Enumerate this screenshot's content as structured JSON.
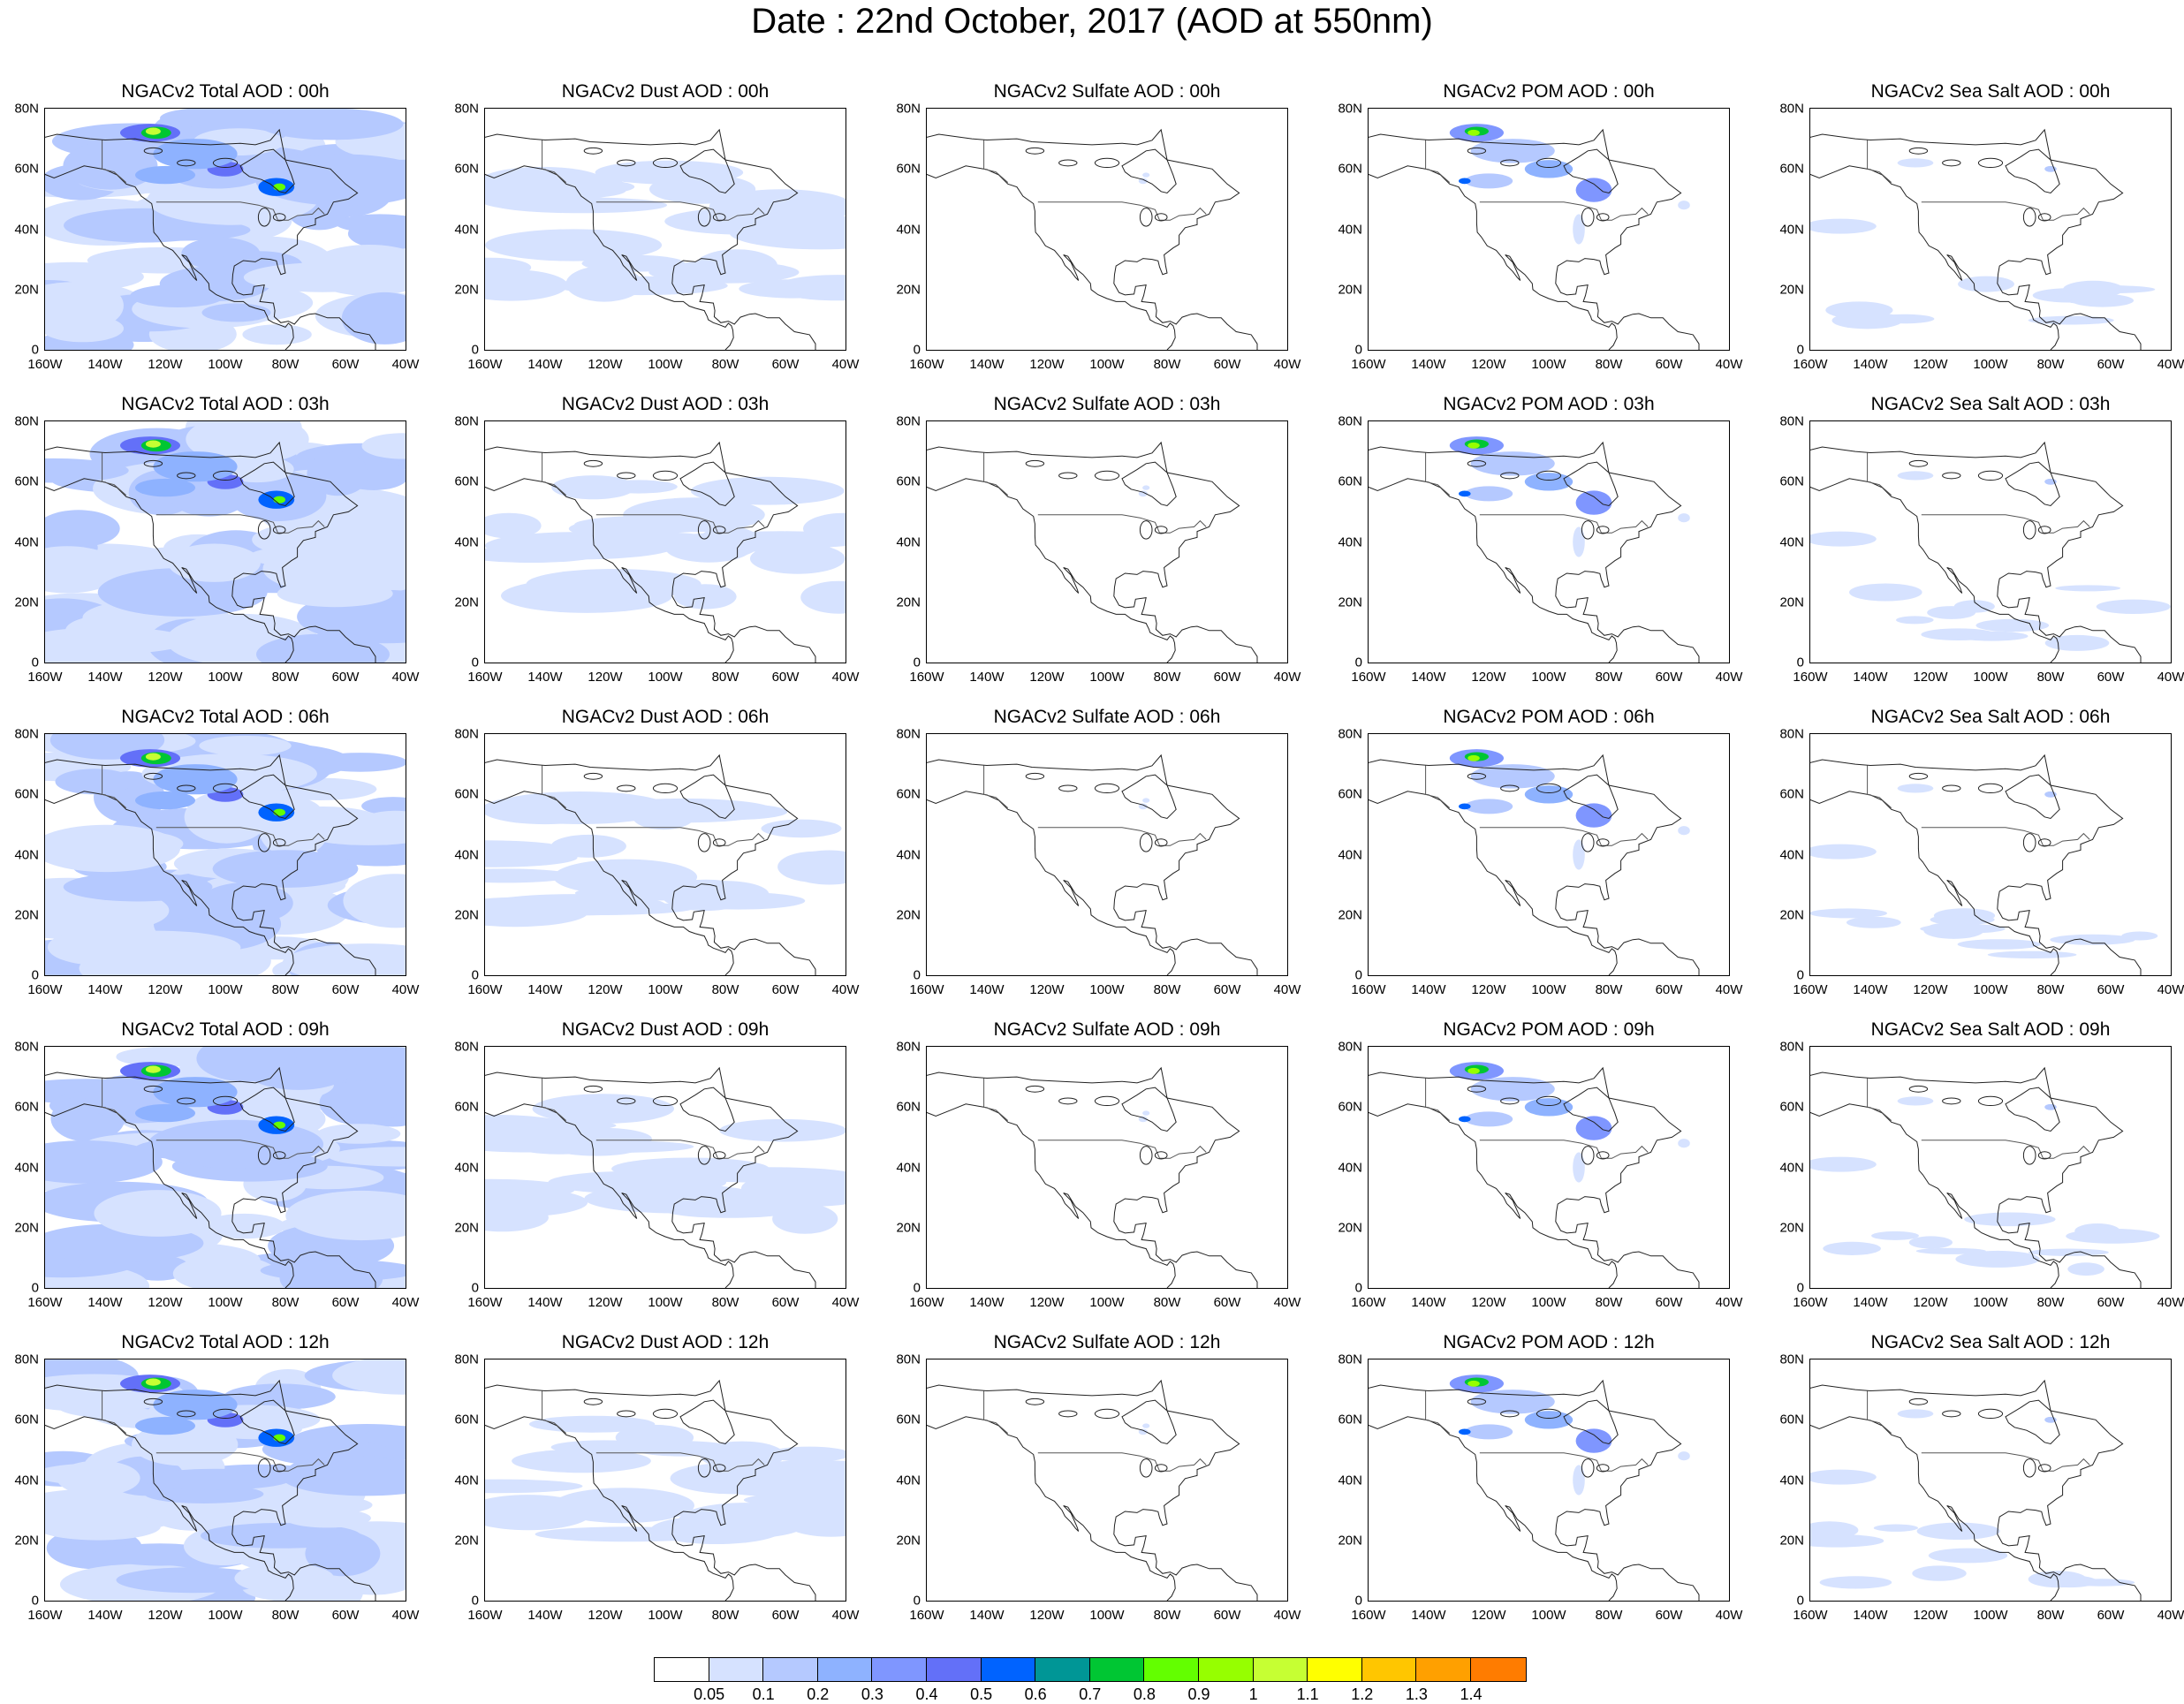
{
  "title": "Date : 22nd October, 2017 (AOD at 550nm)",
  "map_axes": {
    "lat_ticks": [
      "80N",
      "60N",
      "40N",
      "20N",
      "0"
    ],
    "lon_ticks": [
      "160W",
      "140W",
      "120W",
      "100W",
      "80W",
      "60W",
      "40W"
    ]
  },
  "panels": [
    [
      "NGACv2 Total AOD : 00h",
      "NGACv2 Dust AOD : 00h",
      "NGACv2 Sulfate AOD : 00h",
      "NGACv2 POM AOD : 00h",
      "NGACv2 Sea Salt AOD : 00h"
    ],
    [
      "NGACv2 Total AOD : 03h",
      "NGACv2 Dust AOD : 03h",
      "NGACv2 Sulfate AOD : 03h",
      "NGACv2 POM AOD : 03h",
      "NGACv2 Sea Salt AOD : 03h"
    ],
    [
      "NGACv2 Total AOD : 06h",
      "NGACv2 Dust AOD : 06h",
      "NGACv2 Sulfate AOD : 06h",
      "NGACv2 POM AOD : 06h",
      "NGACv2 Sea Salt AOD : 06h"
    ],
    [
      "NGACv2 Total AOD : 09h",
      "NGACv2 Dust AOD : 09h",
      "NGACv2 Sulfate AOD : 09h",
      "NGACv2 POM AOD : 09h",
      "NGACv2 Sea Salt  AOD : 09h"
    ],
    [
      "NGACv2 Total AOD  : 12h",
      "NGACv2 Dust AOD : 12h",
      "NGACv2 Sulfate AOD : 12h",
      "NGACv2 POM  AOD : 12h",
      "NGACv2 Sea Salt  AOD : 12h"
    ]
  ],
  "colorbar": {
    "labels": [
      "0.05",
      "0.1",
      "0.2",
      "0.3",
      "0.4",
      "0.5",
      "0.6",
      "0.7",
      "0.8",
      "0.9",
      "1",
      "1.1",
      "1.2",
      "1.3",
      "1.4"
    ],
    "colors": [
      "#ffffff",
      "#d6e2ff",
      "#b5c9ff",
      "#8eb2ff",
      "#7f96ff",
      "#6370f8",
      "#0063ff",
      "#009696",
      "#00c633",
      "#63ff00",
      "#96ff00",
      "#c6ff33",
      "#ffff00",
      "#ffc600",
      "#ffa000",
      "#ff7c00",
      "#ff1900"
    ]
  },
  "species_style": {
    "total": "heavy",
    "dust": "light",
    "sulfate": "minimal",
    "pom": "medium",
    "seasalt": "sparse"
  }
}
